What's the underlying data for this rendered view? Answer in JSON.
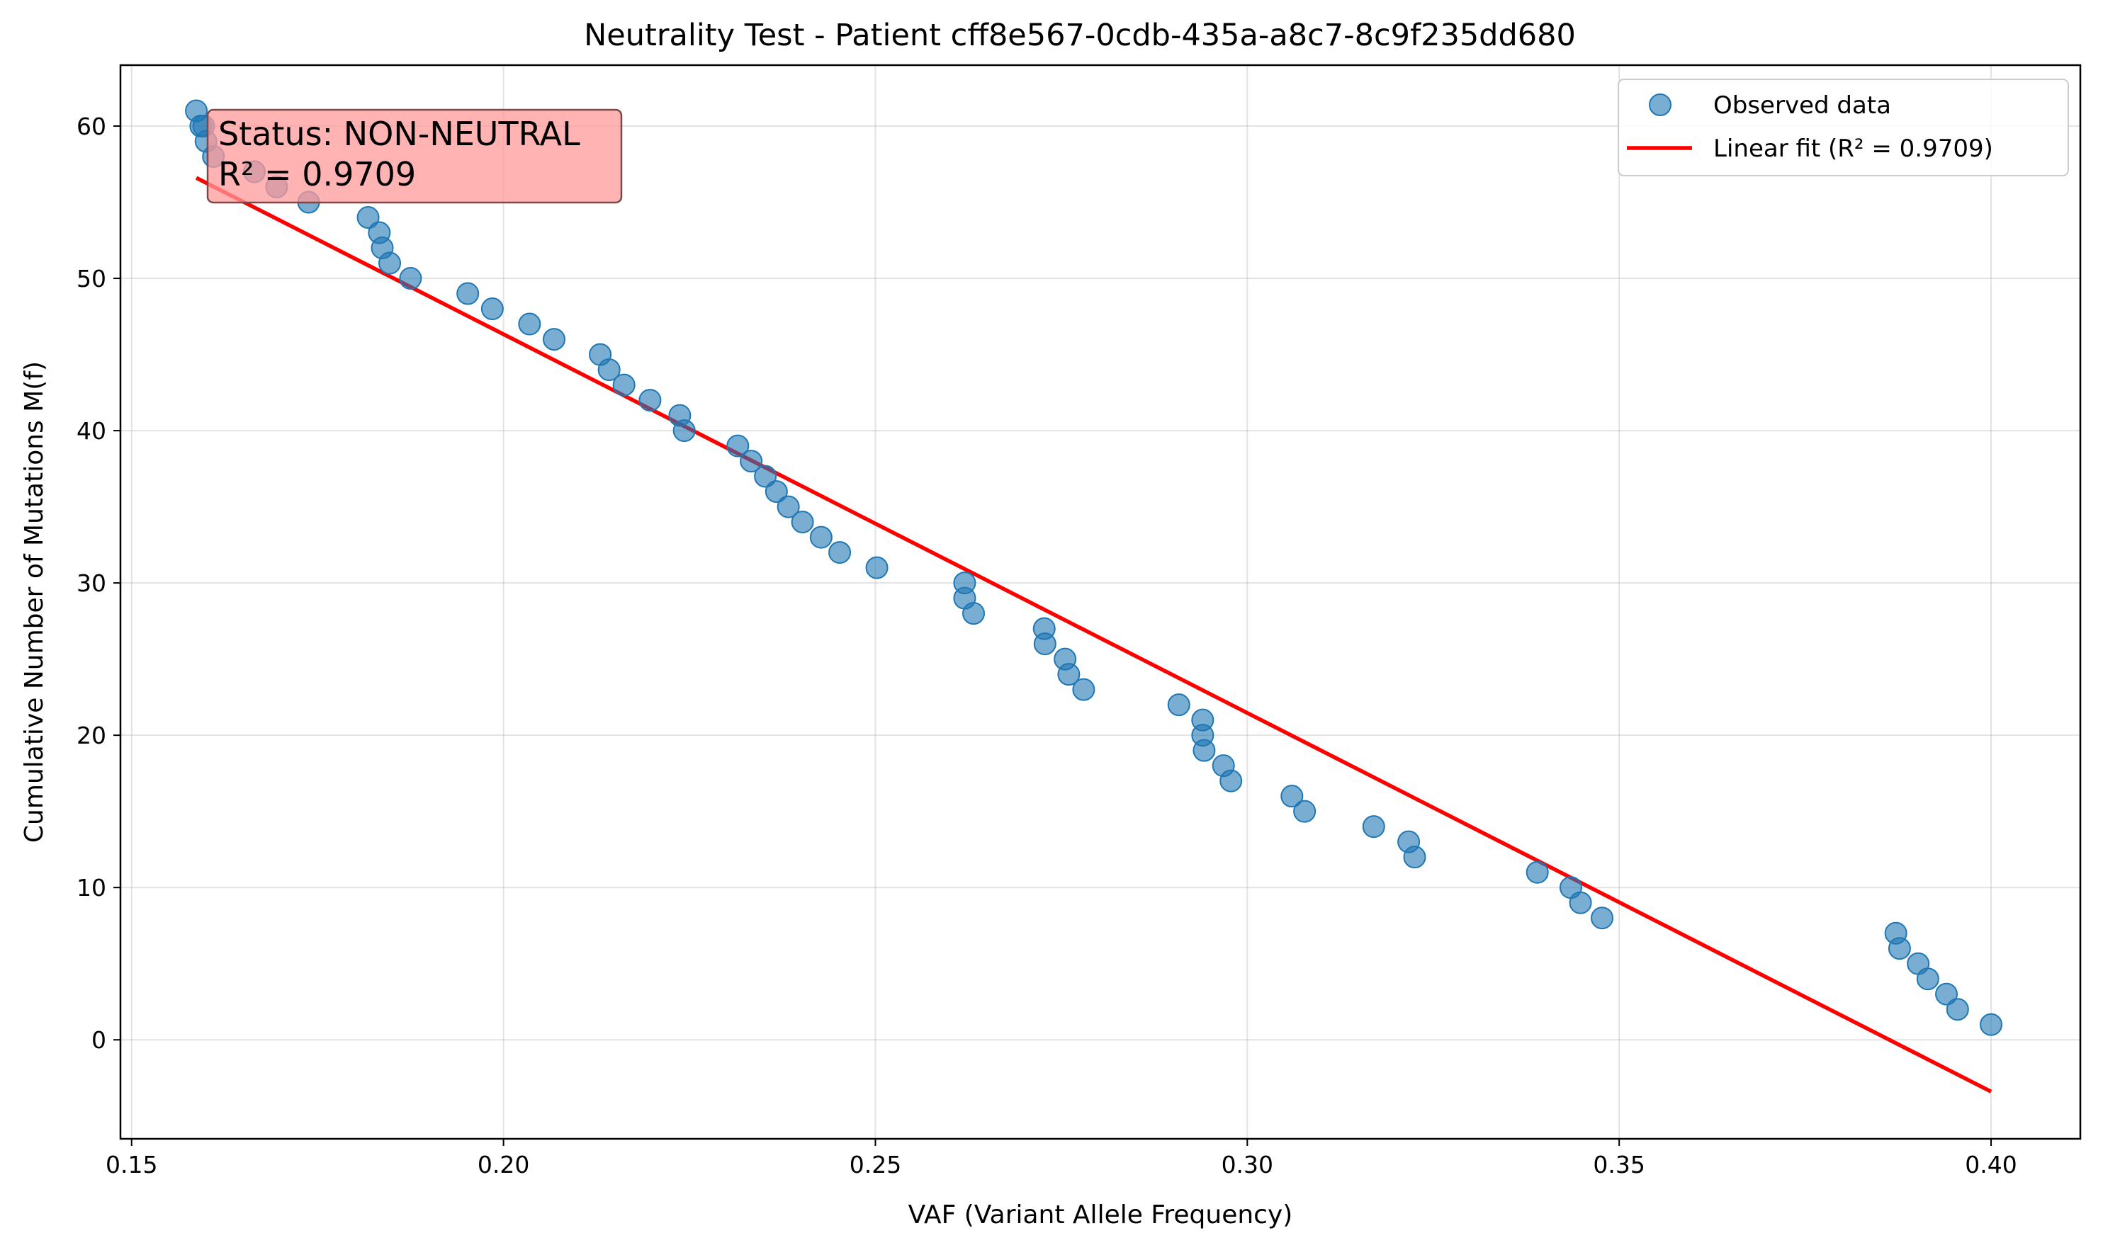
{
  "chart_data": {
    "type": "scatter",
    "title": "Neutrality Test - Patient cff8e567-0cdb-435a-a8c7-8c9f235dd680",
    "xlabel": "VAF (Variant Allele Frequency)",
    "ylabel": "Cumulative Number of Mutations M(f)",
    "xlim": [
      0.1485,
      0.412
    ],
    "ylim": [
      -6.5,
      64.0
    ],
    "xticks": [
      0.15,
      0.2,
      0.25,
      0.3,
      0.35,
      0.4
    ],
    "xtick_labels": [
      "0.15",
      "0.20",
      "0.25",
      "0.30",
      "0.35",
      "0.40"
    ],
    "yticks": [
      0,
      10,
      20,
      30,
      40,
      50,
      60
    ],
    "ytick_labels": [
      "0",
      "10",
      "20",
      "30",
      "40",
      "50",
      "60"
    ],
    "grid": true,
    "legend_position": "top-right",
    "series": [
      {
        "name": "Observed data",
        "kind": "scatter",
        "color": "#1f77b4",
        "x": [
          0.1587,
          0.1593,
          0.1597,
          0.16,
          0.161,
          0.1665,
          0.1695,
          0.1738,
          0.1818,
          0.1833,
          0.1837,
          0.1847,
          0.1875,
          0.1952,
          0.1985,
          0.2035,
          0.2068,
          0.213,
          0.2142,
          0.2162,
          0.2197,
          0.2237,
          0.2243,
          0.2315,
          0.2333,
          0.2352,
          0.2367,
          0.2383,
          0.2402,
          0.2427,
          0.2452,
          0.2502,
          0.262,
          0.262,
          0.2632,
          0.2727,
          0.2728,
          0.2755,
          0.276,
          0.278,
          0.2908,
          0.294,
          0.294,
          0.2942,
          0.2968,
          0.2978,
          0.306,
          0.3077,
          0.317,
          0.3217,
          0.3225,
          0.339,
          0.3435,
          0.3448,
          0.3477,
          0.3872,
          0.3877,
          0.3902,
          0.3915,
          0.394,
          0.3955,
          0.4
        ],
        "y": [
          61,
          60,
          60,
          59,
          58,
          57,
          56,
          55,
          54,
          53,
          52,
          51,
          50,
          49,
          48,
          47,
          46,
          45,
          44,
          43,
          42,
          41,
          40,
          39,
          38,
          37,
          36,
          35,
          34,
          33,
          32,
          31,
          30,
          29,
          28,
          27,
          26,
          25,
          24,
          23,
          22,
          21,
          20,
          19,
          18,
          17,
          16,
          15,
          14,
          13,
          12,
          11,
          10,
          9,
          8,
          7,
          6,
          5,
          4,
          3,
          2,
          1
        ]
      },
      {
        "name": "Linear fit (R² = 0.9709)",
        "kind": "line",
        "color": "#ff0000",
        "x": [
          0.1587,
          0.4
        ],
        "y": [
          56.6,
          -3.4
        ]
      }
    ],
    "annotations": [
      {
        "lines": [
          "Status: NON-NEUTRAL",
          "R² = 0.9709"
        ],
        "box_color": "#ff9999"
      }
    ]
  }
}
